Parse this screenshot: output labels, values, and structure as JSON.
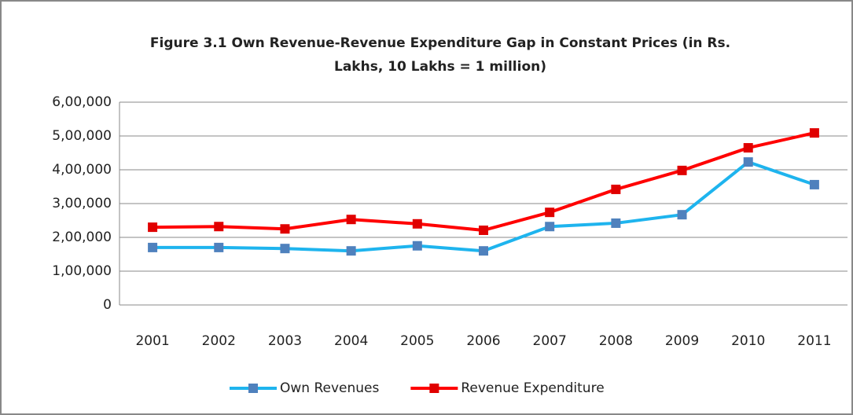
{
  "chart_data": {
    "type": "line",
    "title": [
      "Figure 3.1 Own Revenue-Revenue Expenditure Gap in Constant  Prices (in Rs.",
      "Lakhs, 10 Lakhs = 1 million)"
    ],
    "categories": [
      "2001",
      "2002",
      "2003",
      "2004",
      "2005",
      "2006",
      "2007",
      "2008",
      "2009",
      "2010",
      "2011"
    ],
    "series": [
      {
        "name": "Own Revenues",
        "color": "#1eb4ee",
        "marker_color": "#4f81bd",
        "values": [
          170000,
          170000,
          167000,
          160000,
          175000,
          160000,
          232000,
          242000,
          267000,
          423000,
          356000
        ]
      },
      {
        "name": "Revenue Expenditure",
        "color": "#ff0000",
        "marker_color": "#e00000",
        "values": [
          230000,
          232000,
          225000,
          253000,
          240000,
          221000,
          274000,
          342000,
          398000,
          465000,
          509000
        ]
      }
    ],
    "ylim": [
      0,
      600000
    ],
    "yticks": [
      0,
      {
        "value": 100000,
        "label": "1,00,000"
      },
      {
        "value": 200000,
        "label": "2,00,000"
      },
      {
        "value": 300000,
        "label": "3,00,000"
      },
      {
        "value": 400000,
        "label": "4,00,000"
      },
      {
        "value": 500000,
        "label": "5,00,000"
      },
      {
        "value": 600000,
        "label": "6,00,000"
      }
    ],
    "grid": true,
    "legend": "bottom"
  }
}
